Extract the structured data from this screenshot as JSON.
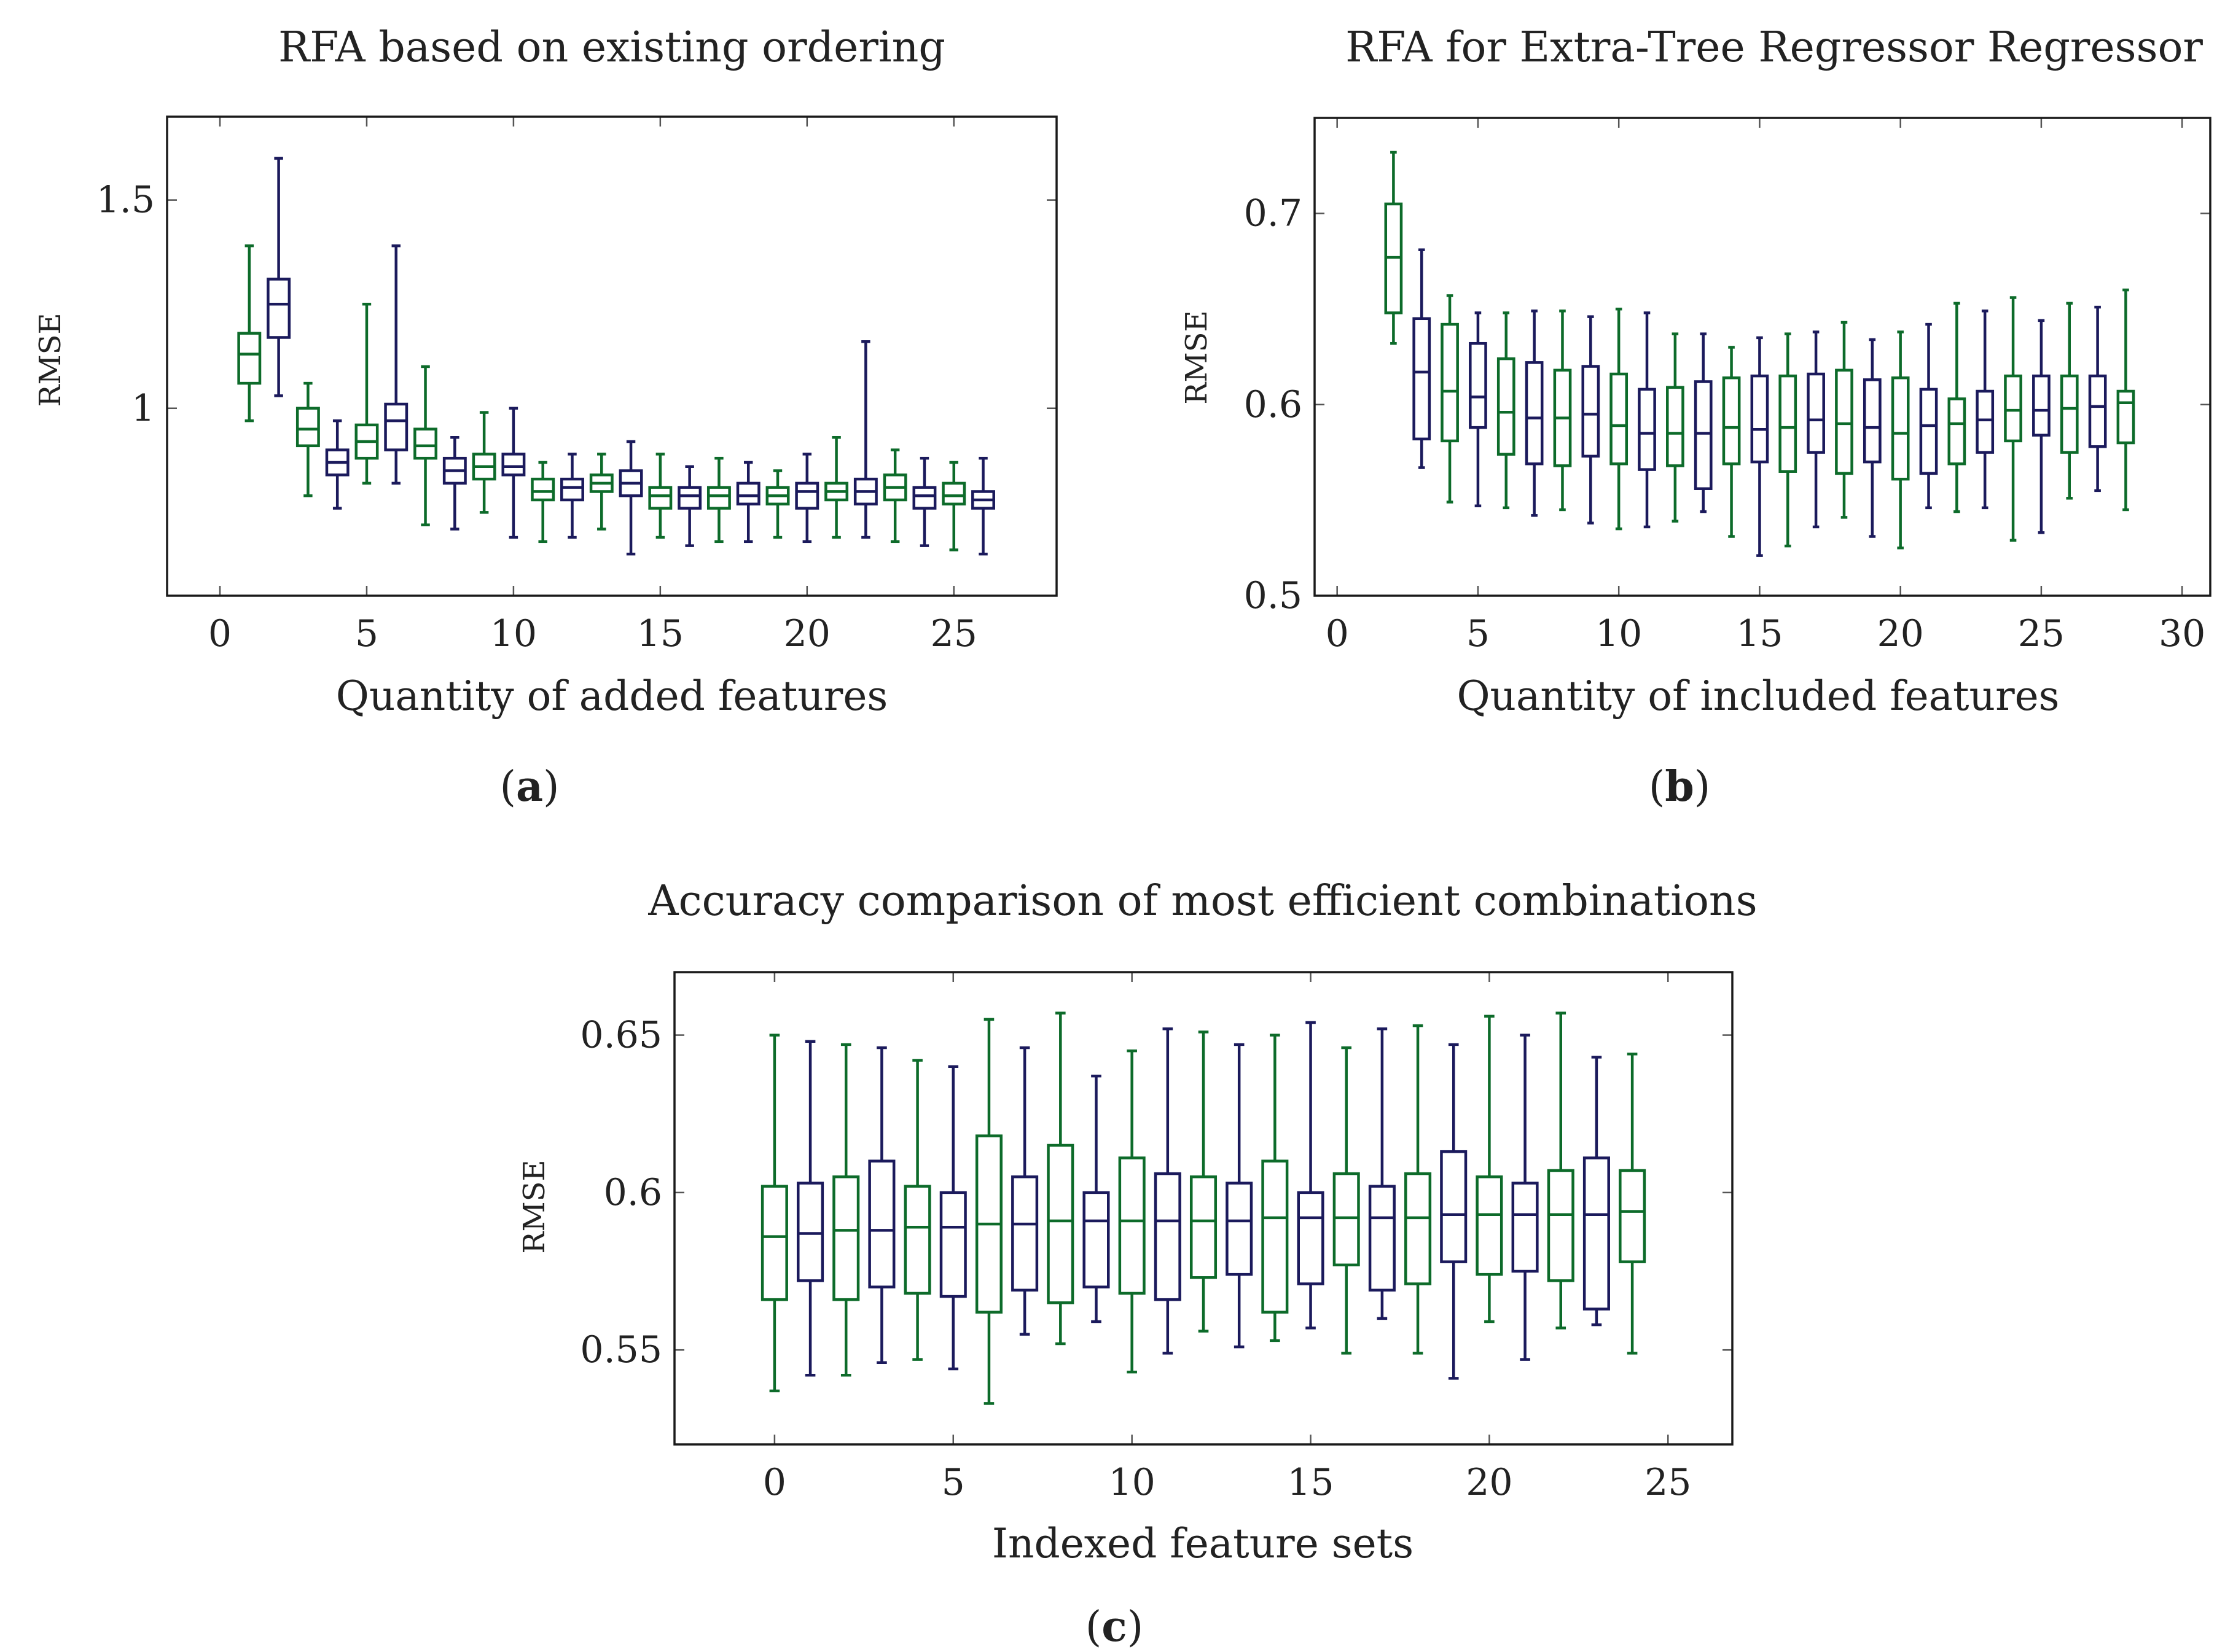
{
  "colors": {
    "green": "#0d6b2a",
    "navy": "#1b1a5c"
  },
  "chart_data": [
    {
      "id": "a",
      "type": "box",
      "title": "RFA based on existing ordering",
      "xlabel": "Quantity of added features",
      "ylabel": "RMSE",
      "caption": {
        "open": "(",
        "letter": "a",
        "close": ")"
      },
      "xlim": [
        -1.8,
        28.5
      ],
      "ylim": [
        0.55,
        1.7
      ],
      "xticks": [
        0,
        5,
        10,
        15,
        20,
        25
      ],
      "yticks": [
        1,
        1.5
      ],
      "ytick_labels": [
        "1",
        "1.5"
      ],
      "box_width": 0.72,
      "boxes": [
        {
          "x": 1,
          "color": "green",
          "whisker_low": 0.97,
          "q1": 1.06,
          "median": 1.13,
          "q3": 1.18,
          "whisker_high": 1.39
        },
        {
          "x": 2,
          "color": "navy",
          "whisker_low": 1.03,
          "q1": 1.17,
          "median": 1.25,
          "q3": 1.31,
          "whisker_high": 1.6
        },
        {
          "x": 3,
          "color": "green",
          "whisker_low": 0.79,
          "q1": 0.91,
          "median": 0.95,
          "q3": 1.0,
          "whisker_high": 1.06
        },
        {
          "x": 4,
          "color": "navy",
          "whisker_low": 0.76,
          "q1": 0.84,
          "median": 0.87,
          "q3": 0.9,
          "whisker_high": 0.97
        },
        {
          "x": 5,
          "color": "green",
          "whisker_low": 0.82,
          "q1": 0.88,
          "median": 0.92,
          "q3": 0.96,
          "whisker_high": 1.25
        },
        {
          "x": 6,
          "color": "navy",
          "whisker_low": 0.82,
          "q1": 0.9,
          "median": 0.97,
          "q3": 1.01,
          "whisker_high": 1.39
        },
        {
          "x": 7,
          "color": "green",
          "whisker_low": 0.72,
          "q1": 0.88,
          "median": 0.91,
          "q3": 0.95,
          "whisker_high": 1.1
        },
        {
          "x": 8,
          "color": "navy",
          "whisker_low": 0.71,
          "q1": 0.82,
          "median": 0.85,
          "q3": 0.88,
          "whisker_high": 0.93
        },
        {
          "x": 9,
          "color": "green",
          "whisker_low": 0.75,
          "q1": 0.83,
          "median": 0.86,
          "q3": 0.89,
          "whisker_high": 0.99
        },
        {
          "x": 10,
          "color": "navy",
          "whisker_low": 0.69,
          "q1": 0.84,
          "median": 0.86,
          "q3": 0.89,
          "whisker_high": 1.0
        },
        {
          "x": 11,
          "color": "green",
          "whisker_low": 0.68,
          "q1": 0.78,
          "median": 0.8,
          "q3": 0.83,
          "whisker_high": 0.87
        },
        {
          "x": 12,
          "color": "navy",
          "whisker_low": 0.69,
          "q1": 0.78,
          "median": 0.81,
          "q3": 0.83,
          "whisker_high": 0.89
        },
        {
          "x": 13,
          "color": "green",
          "whisker_low": 0.71,
          "q1": 0.8,
          "median": 0.82,
          "q3": 0.84,
          "whisker_high": 0.89
        },
        {
          "x": 14,
          "color": "navy",
          "whisker_low": 0.65,
          "q1": 0.79,
          "median": 0.82,
          "q3": 0.85,
          "whisker_high": 0.92
        },
        {
          "x": 15,
          "color": "green",
          "whisker_low": 0.69,
          "q1": 0.76,
          "median": 0.79,
          "q3": 0.81,
          "whisker_high": 0.89
        },
        {
          "x": 16,
          "color": "navy",
          "whisker_low": 0.67,
          "q1": 0.76,
          "median": 0.79,
          "q3": 0.81,
          "whisker_high": 0.86
        },
        {
          "x": 17,
          "color": "green",
          "whisker_low": 0.68,
          "q1": 0.76,
          "median": 0.79,
          "q3": 0.81,
          "whisker_high": 0.88
        },
        {
          "x": 18,
          "color": "navy",
          "whisker_low": 0.68,
          "q1": 0.77,
          "median": 0.79,
          "q3": 0.82,
          "whisker_high": 0.87
        },
        {
          "x": 19,
          "color": "green",
          "whisker_low": 0.69,
          "q1": 0.77,
          "median": 0.79,
          "q3": 0.81,
          "whisker_high": 0.85
        },
        {
          "x": 20,
          "color": "navy",
          "whisker_low": 0.68,
          "q1": 0.76,
          "median": 0.8,
          "q3": 0.82,
          "whisker_high": 0.89
        },
        {
          "x": 21,
          "color": "green",
          "whisker_low": 0.69,
          "q1": 0.78,
          "median": 0.8,
          "q3": 0.82,
          "whisker_high": 0.93
        },
        {
          "x": 22,
          "color": "navy",
          "whisker_low": 0.69,
          "q1": 0.77,
          "median": 0.8,
          "q3": 0.83,
          "whisker_high": 1.16
        },
        {
          "x": 23,
          "color": "green",
          "whisker_low": 0.68,
          "q1": 0.78,
          "median": 0.81,
          "q3": 0.84,
          "whisker_high": 0.9
        },
        {
          "x": 24,
          "color": "navy",
          "whisker_low": 0.67,
          "q1": 0.76,
          "median": 0.79,
          "q3": 0.81,
          "whisker_high": 0.88
        },
        {
          "x": 25,
          "color": "green",
          "whisker_low": 0.66,
          "q1": 0.77,
          "median": 0.79,
          "q3": 0.82,
          "whisker_high": 0.87
        },
        {
          "x": 26,
          "color": "navy",
          "whisker_low": 0.65,
          "q1": 0.76,
          "median": 0.78,
          "q3": 0.8,
          "whisker_high": 0.88
        }
      ]
    },
    {
      "id": "b",
      "type": "box",
      "title": "RFA for Extra-Tree Regressor Regressor",
      "xlabel": "Quantity of included features",
      "ylabel": "RMSE",
      "caption": {
        "open": "(",
        "letter": "b",
        "close": ")"
      },
      "xlim": [
        -0.8,
        31.0
      ],
      "ylim": [
        0.5,
        0.75
      ],
      "xticks": [
        0,
        5,
        10,
        15,
        20,
        25,
        30
      ],
      "yticks": [
        0.5,
        0.6,
        0.7
      ],
      "ytick_labels": [
        "0.5",
        "0.6",
        "0.7"
      ],
      "box_width": 0.55,
      "boxes": [
        {
          "x": 2,
          "color": "green",
          "whisker_low": 0.632,
          "q1": 0.648,
          "median": 0.677,
          "q3": 0.705,
          "whisker_high": 0.732
        },
        {
          "x": 3,
          "color": "navy",
          "whisker_low": 0.567,
          "q1": 0.582,
          "median": 0.617,
          "q3": 0.645,
          "whisker_high": 0.681
        },
        {
          "x": 4,
          "color": "green",
          "whisker_low": 0.549,
          "q1": 0.581,
          "median": 0.607,
          "q3": 0.642,
          "whisker_high": 0.657
        },
        {
          "x": 5,
          "color": "navy",
          "whisker_low": 0.547,
          "q1": 0.588,
          "median": 0.604,
          "q3": 0.632,
          "whisker_high": 0.648
        },
        {
          "x": 6,
          "color": "green",
          "whisker_low": 0.546,
          "q1": 0.574,
          "median": 0.596,
          "q3": 0.624,
          "whisker_high": 0.648
        },
        {
          "x": 7,
          "color": "navy",
          "whisker_low": 0.542,
          "q1": 0.569,
          "median": 0.593,
          "q3": 0.622,
          "whisker_high": 0.649
        },
        {
          "x": 8,
          "color": "green",
          "whisker_low": 0.545,
          "q1": 0.568,
          "median": 0.593,
          "q3": 0.618,
          "whisker_high": 0.649
        },
        {
          "x": 9,
          "color": "navy",
          "whisker_low": 0.538,
          "q1": 0.573,
          "median": 0.595,
          "q3": 0.62,
          "whisker_high": 0.646
        },
        {
          "x": 10,
          "color": "green",
          "whisker_low": 0.535,
          "q1": 0.569,
          "median": 0.589,
          "q3": 0.616,
          "whisker_high": 0.65
        },
        {
          "x": 11,
          "color": "navy",
          "whisker_low": 0.536,
          "q1": 0.566,
          "median": 0.585,
          "q3": 0.608,
          "whisker_high": 0.648
        },
        {
          "x": 12,
          "color": "green",
          "whisker_low": 0.539,
          "q1": 0.568,
          "median": 0.585,
          "q3": 0.609,
          "whisker_high": 0.637
        },
        {
          "x": 13,
          "color": "navy",
          "whisker_low": 0.544,
          "q1": 0.556,
          "median": 0.585,
          "q3": 0.612,
          "whisker_high": 0.637
        },
        {
          "x": 14,
          "color": "green",
          "whisker_low": 0.531,
          "q1": 0.569,
          "median": 0.588,
          "q3": 0.614,
          "whisker_high": 0.63
        },
        {
          "x": 15,
          "color": "navy",
          "whisker_low": 0.521,
          "q1": 0.57,
          "median": 0.587,
          "q3": 0.615,
          "whisker_high": 0.635
        },
        {
          "x": 16,
          "color": "green",
          "whisker_low": 0.526,
          "q1": 0.565,
          "median": 0.588,
          "q3": 0.615,
          "whisker_high": 0.637
        },
        {
          "x": 17,
          "color": "navy",
          "whisker_low": 0.536,
          "q1": 0.575,
          "median": 0.592,
          "q3": 0.616,
          "whisker_high": 0.638
        },
        {
          "x": 18,
          "color": "green",
          "whisker_low": 0.541,
          "q1": 0.564,
          "median": 0.59,
          "q3": 0.618,
          "whisker_high": 0.643
        },
        {
          "x": 19,
          "color": "navy",
          "whisker_low": 0.531,
          "q1": 0.57,
          "median": 0.588,
          "q3": 0.613,
          "whisker_high": 0.634
        },
        {
          "x": 20,
          "color": "green",
          "whisker_low": 0.525,
          "q1": 0.561,
          "median": 0.585,
          "q3": 0.614,
          "whisker_high": 0.638
        },
        {
          "x": 21,
          "color": "navy",
          "whisker_low": 0.546,
          "q1": 0.564,
          "median": 0.589,
          "q3": 0.608,
          "whisker_high": 0.642
        },
        {
          "x": 22,
          "color": "green",
          "whisker_low": 0.544,
          "q1": 0.569,
          "median": 0.59,
          "q3": 0.603,
          "whisker_high": 0.653
        },
        {
          "x": 23,
          "color": "navy",
          "whisker_low": 0.546,
          "q1": 0.575,
          "median": 0.592,
          "q3": 0.607,
          "whisker_high": 0.649
        },
        {
          "x": 24,
          "color": "green",
          "whisker_low": 0.529,
          "q1": 0.581,
          "median": 0.597,
          "q3": 0.615,
          "whisker_high": 0.656
        },
        {
          "x": 25,
          "color": "navy",
          "whisker_low": 0.533,
          "q1": 0.584,
          "median": 0.597,
          "q3": 0.615,
          "whisker_high": 0.644
        },
        {
          "x": 26,
          "color": "green",
          "whisker_low": 0.551,
          "q1": 0.575,
          "median": 0.598,
          "q3": 0.615,
          "whisker_high": 0.653
        },
        {
          "x": 27,
          "color": "navy",
          "whisker_low": 0.555,
          "q1": 0.578,
          "median": 0.599,
          "q3": 0.615,
          "whisker_high": 0.651
        },
        {
          "x": 28,
          "color": "green",
          "whisker_low": 0.545,
          "q1": 0.58,
          "median": 0.601,
          "q3": 0.607,
          "whisker_high": 0.66
        }
      ]
    },
    {
      "id": "c",
      "type": "box",
      "title": "Accuracy comparison of most efficient combinations",
      "xlabel": "Indexed feature sets",
      "ylabel": "RMSE",
      "caption": {
        "open": "(",
        "letter": "c",
        "close": ")"
      },
      "xlim": [
        -2.8,
        26.8
      ],
      "ylim": [
        0.52,
        0.67
      ],
      "xticks": [
        0,
        5,
        10,
        15,
        20,
        25
      ],
      "yticks": [
        0.55,
        0.6,
        0.65
      ],
      "ytick_labels": [
        "0.55",
        "0.6",
        "0.65"
      ],
      "box_width": 0.68,
      "boxes": [
        {
          "x": 0,
          "color": "green",
          "whisker_low": 0.537,
          "q1": 0.566,
          "median": 0.586,
          "q3": 0.602,
          "whisker_high": 0.65
        },
        {
          "x": 1,
          "color": "navy",
          "whisker_low": 0.542,
          "q1": 0.572,
          "median": 0.587,
          "q3": 0.603,
          "whisker_high": 0.648
        },
        {
          "x": 2,
          "color": "green",
          "whisker_low": 0.542,
          "q1": 0.566,
          "median": 0.588,
          "q3": 0.605,
          "whisker_high": 0.647
        },
        {
          "x": 3,
          "color": "navy",
          "whisker_low": 0.546,
          "q1": 0.57,
          "median": 0.588,
          "q3": 0.61,
          "whisker_high": 0.646
        },
        {
          "x": 4,
          "color": "green",
          "whisker_low": 0.547,
          "q1": 0.568,
          "median": 0.589,
          "q3": 0.602,
          "whisker_high": 0.642
        },
        {
          "x": 5,
          "color": "navy",
          "whisker_low": 0.544,
          "q1": 0.567,
          "median": 0.589,
          "q3": 0.6,
          "whisker_high": 0.64
        },
        {
          "x": 6,
          "color": "green",
          "whisker_low": 0.533,
          "q1": 0.562,
          "median": 0.59,
          "q3": 0.618,
          "whisker_high": 0.655
        },
        {
          "x": 7,
          "color": "navy",
          "whisker_low": 0.555,
          "q1": 0.569,
          "median": 0.59,
          "q3": 0.605,
          "whisker_high": 0.646
        },
        {
          "x": 8,
          "color": "green",
          "whisker_low": 0.552,
          "q1": 0.565,
          "median": 0.591,
          "q3": 0.615,
          "whisker_high": 0.657
        },
        {
          "x": 9,
          "color": "navy",
          "whisker_low": 0.559,
          "q1": 0.57,
          "median": 0.591,
          "q3": 0.6,
          "whisker_high": 0.637
        },
        {
          "x": 10,
          "color": "green",
          "whisker_low": 0.543,
          "q1": 0.568,
          "median": 0.591,
          "q3": 0.611,
          "whisker_high": 0.645
        },
        {
          "x": 11,
          "color": "navy",
          "whisker_low": 0.549,
          "q1": 0.566,
          "median": 0.591,
          "q3": 0.606,
          "whisker_high": 0.652
        },
        {
          "x": 12,
          "color": "green",
          "whisker_low": 0.556,
          "q1": 0.573,
          "median": 0.591,
          "q3": 0.605,
          "whisker_high": 0.651
        },
        {
          "x": 13,
          "color": "navy",
          "whisker_low": 0.551,
          "q1": 0.574,
          "median": 0.591,
          "q3": 0.603,
          "whisker_high": 0.647
        },
        {
          "x": 14,
          "color": "green",
          "whisker_low": 0.553,
          "q1": 0.562,
          "median": 0.592,
          "q3": 0.61,
          "whisker_high": 0.65
        },
        {
          "x": 15,
          "color": "navy",
          "whisker_low": 0.557,
          "q1": 0.571,
          "median": 0.592,
          "q3": 0.6,
          "whisker_high": 0.654
        },
        {
          "x": 16,
          "color": "green",
          "whisker_low": 0.549,
          "q1": 0.577,
          "median": 0.592,
          "q3": 0.606,
          "whisker_high": 0.646
        },
        {
          "x": 17,
          "color": "navy",
          "whisker_low": 0.56,
          "q1": 0.569,
          "median": 0.592,
          "q3": 0.602,
          "whisker_high": 0.652
        },
        {
          "x": 18,
          "color": "green",
          "whisker_low": 0.549,
          "q1": 0.571,
          "median": 0.592,
          "q3": 0.606,
          "whisker_high": 0.653
        },
        {
          "x": 19,
          "color": "navy",
          "whisker_low": 0.541,
          "q1": 0.578,
          "median": 0.593,
          "q3": 0.613,
          "whisker_high": 0.647
        },
        {
          "x": 20,
          "color": "green",
          "whisker_low": 0.559,
          "q1": 0.574,
          "median": 0.593,
          "q3": 0.605,
          "whisker_high": 0.656
        },
        {
          "x": 21,
          "color": "navy",
          "whisker_low": 0.547,
          "q1": 0.575,
          "median": 0.593,
          "q3": 0.603,
          "whisker_high": 0.65
        },
        {
          "x": 22,
          "color": "green",
          "whisker_low": 0.557,
          "q1": 0.572,
          "median": 0.593,
          "q3": 0.607,
          "whisker_high": 0.657
        },
        {
          "x": 23,
          "color": "navy",
          "whisker_low": 0.558,
          "q1": 0.563,
          "median": 0.593,
          "q3": 0.611,
          "whisker_high": 0.643
        },
        {
          "x": 24,
          "color": "green",
          "whisker_low": 0.549,
          "q1": 0.578,
          "median": 0.594,
          "q3": 0.607,
          "whisker_high": 0.644
        }
      ]
    }
  ]
}
